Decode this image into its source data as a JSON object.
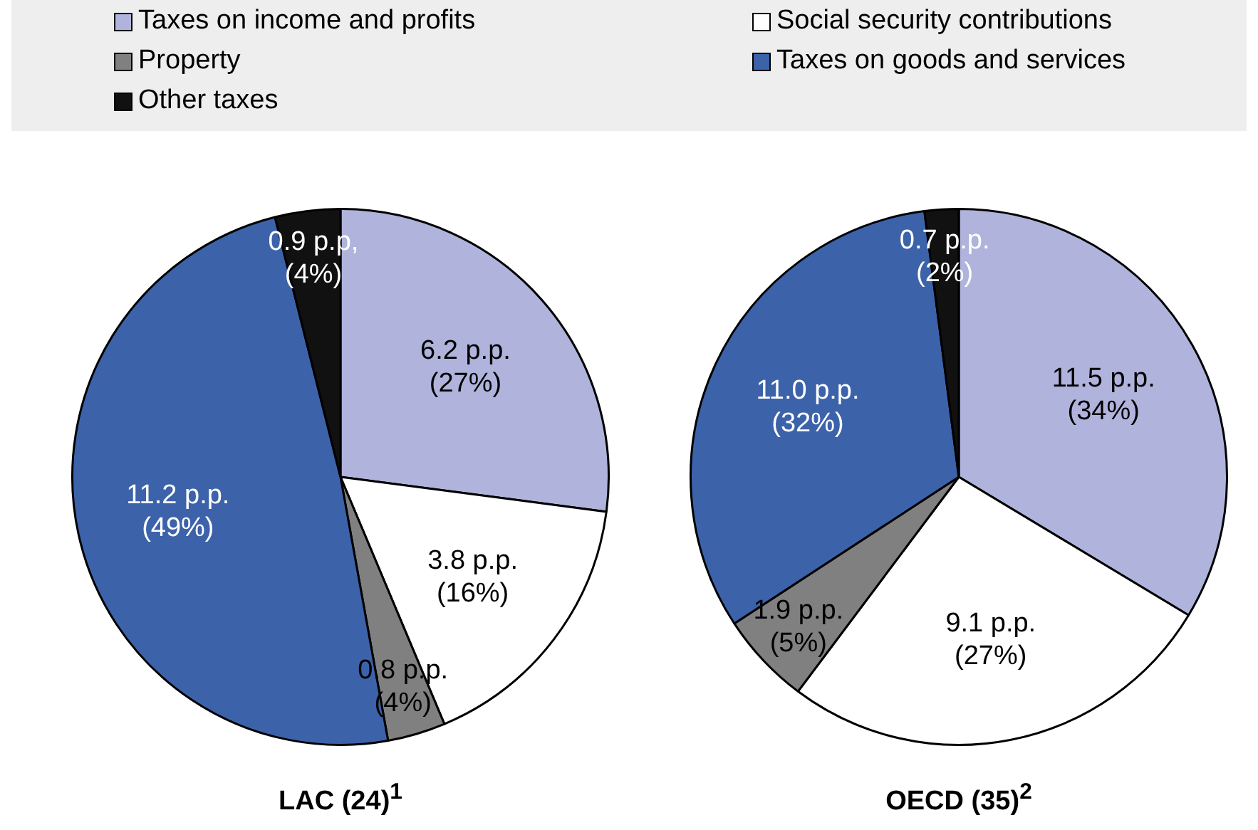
{
  "chart_data": [
    {
      "type": "pie",
      "title": "LAC (24)$^{1}$",
      "legend": "top",
      "categories": [
        "Taxes on income and profits",
        "Social security contributions",
        "Property",
        "Taxes on goods and services",
        "Other taxes"
      ],
      "values": [
        6.2,
        3.8,
        0.8,
        11.2,
        0.9
      ],
      "colors": [
        "#b0b4dc",
        "#ffffff",
        "#808080",
        "#3c62aa",
        "#111111"
      ],
      "value_labels": [
        "6.2 p.p.\n(27%)",
        "3.8 p.p.\n(16%)",
        "0.8 p.p.\n(4%)",
        "11.2 p.p.\n(49%)",
        "0.9 p.p,\n(4%)"
      ]
    },
    {
      "type": "pie",
      "title": "OECD (35)$^{2}$",
      "categories": [
        null,
        null,
        null,
        null,
        null
      ],
      "values": [
        11.5,
        9.1,
        1.9,
        11.0,
        0.7
      ],
      "colors": [
        "#b0b4dc",
        "#ffffff",
        "#808080",
        "#3c62aa",
        "#111111"
      ],
      "value_labels": [
        "11.5 p.p.\n(34%)",
        "9.1 p.p.\n(27%)",
        "1.9 p.p.\n(5%)",
        "11.0 p.p.\n(32%)",
        "0.7 p.p.\n(2%)"
      ]
    }
  ]
}
